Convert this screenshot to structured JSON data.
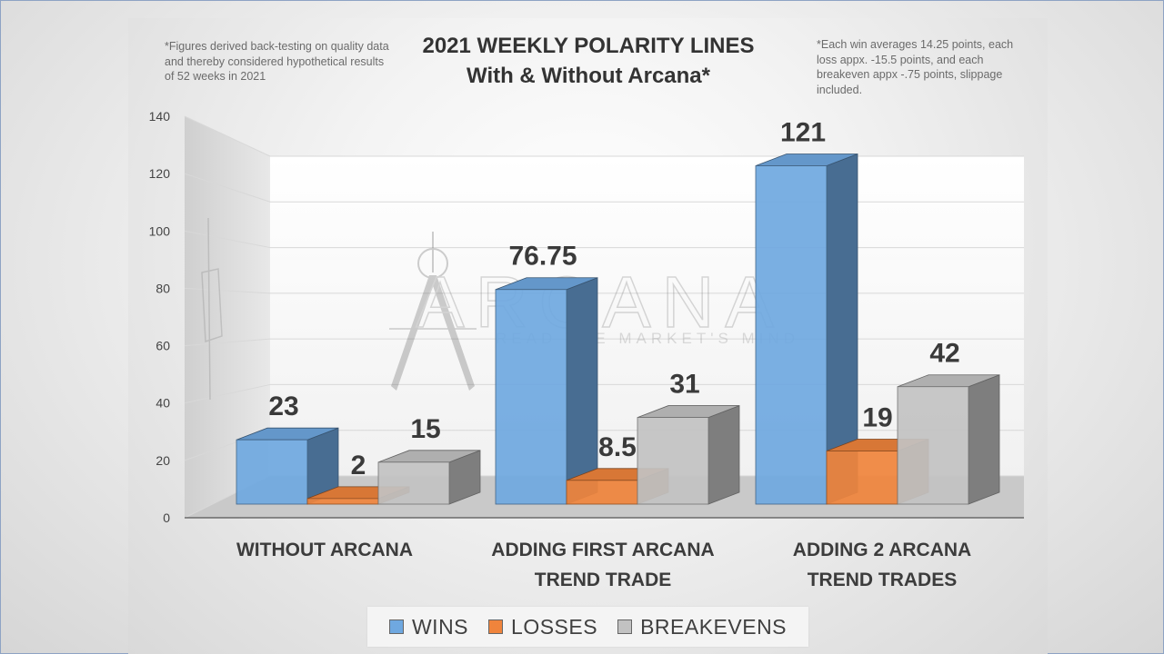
{
  "colors": {
    "wins": "#6fa8e0",
    "losses": "#f0843c",
    "breakevens": "#c2c2c2"
  },
  "notes": {
    "left": "*Figures derived back-testing on quality data and thereby considered hypothetical results of 52 weeks in 2021",
    "right": "*Each win averages 14.25 points, each loss appx. -15.5 points, and each breakeven appx -.75 points, slippage included."
  },
  "watermark": {
    "text": "ARCANA",
    "tagline": "READ THE MARKET'S MIND"
  },
  "chart_data": {
    "type": "bar",
    "title": "2021 WEEKLY POLARITY LINES",
    "subtitle": "With & Without Arcana*",
    "categories": [
      [
        "WITHOUT ARCANA"
      ],
      [
        "ADDING FIRST ARCANA",
        "TREND TRADE"
      ],
      [
        "ADDING 2 ARCANA",
        "TREND TRADES"
      ]
    ],
    "series": [
      {
        "name": "WINS",
        "values": [
          23,
          76.75,
          121
        ],
        "labels": [
          "23",
          "76.75",
          "121"
        ]
      },
      {
        "name": "LOSSES",
        "values": [
          2,
          8.5,
          19
        ],
        "labels": [
          "2",
          "8.5",
          "19"
        ]
      },
      {
        "name": "BREAKEVENS",
        "values": [
          15,
          31,
          42
        ],
        "labels": [
          "15",
          "31",
          "42"
        ]
      }
    ],
    "yticks": [
      "0",
      "20",
      "40",
      "60",
      "80",
      "100",
      "120",
      "140"
    ],
    "ylim": [
      0,
      140
    ],
    "grid": true,
    "legend_position": "bottom",
    "style": "3d-columns"
  }
}
